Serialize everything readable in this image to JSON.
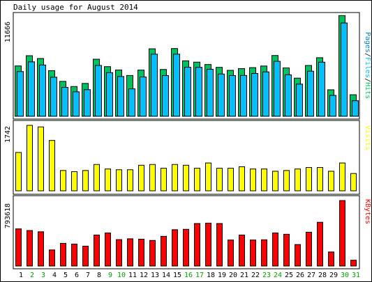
{
  "title": "Daily usage for August 2014",
  "days": [
    "1",
    "2",
    "3",
    "4",
    "5",
    "6",
    "7",
    "8",
    "9",
    "10",
    "11",
    "12",
    "13",
    "14",
    "15",
    "16",
    "17",
    "18",
    "19",
    "20",
    "21",
    "22",
    "23",
    "24",
    "25",
    "26",
    "27",
    "28",
    "29",
    "30",
    "31"
  ],
  "weekend_days": [
    2,
    3,
    9,
    10,
    16,
    17,
    23,
    24,
    30,
    31
  ],
  "panels": {
    "hits_panel": {
      "ymax_label": "11666",
      "legend": [
        "Pages",
        "Files",
        "Hits"
      ],
      "legend_colors": [
        "#0080c0",
        "#00c0ff",
        "#00c060"
      ]
    },
    "visits_panel": {
      "ymax_label": "1742",
      "legend": [
        "Visits"
      ],
      "legend_colors": [
        "#ffff00"
      ]
    },
    "kbytes_panel": {
      "ymax_label": "793618",
      "legend": [
        "KBytes"
      ],
      "legend_colors": [
        "#ff0000"
      ]
    }
  },
  "colors": {
    "hits": "#00c060",
    "files": "#00c0ff",
    "visits": "#ffff00",
    "kbytes": "#ff0000",
    "weekday_label": "#000000",
    "weekend_label": "#00a000",
    "frame_bg": "#ffffff",
    "panel_bg": "#ffffff"
  },
  "chart_data": [
    {
      "type": "bar",
      "ylabel": "Pages/Files/Hits",
      "ylim": [
        0,
        11666
      ],
      "categories": [
        "1",
        "2",
        "3",
        "4",
        "5",
        "6",
        "7",
        "8",
        "9",
        "10",
        "11",
        "12",
        "13",
        "14",
        "15",
        "16",
        "17",
        "18",
        "19",
        "20",
        "21",
        "22",
        "23",
        "24",
        "25",
        "26",
        "27",
        "28",
        "29",
        "30",
        "31"
      ],
      "series": [
        {
          "name": "Hits",
          "values": [
            5700,
            6860,
            6540,
            5170,
            3950,
            3370,
            3720,
            6460,
            5620,
            5240,
            4620,
            5230,
            7640,
            5300,
            7670,
            6280,
            6130,
            5860,
            5540,
            5200,
            5400,
            5510,
            5690,
            6880,
            5480,
            4320,
            5750,
            6630,
            3000,
            11400,
            2440
          ]
        },
        {
          "name": "Files",
          "values": [
            5300,
            6400,
            6040,
            4660,
            3510,
            3010,
            3250,
            5990,
            5180,
            4740,
            3340,
            4690,
            7270,
            4850,
            7270,
            5790,
            5780,
            5560,
            5020,
            4850,
            4860,
            5080,
            5260,
            6460,
            4930,
            3880,
            5340,
            6360,
            2600,
            10800,
            2000
          ]
        }
      ]
    },
    {
      "type": "bar",
      "ylabel": "Visits",
      "ylim": [
        0,
        1742
      ],
      "categories": [
        "1",
        "2",
        "3",
        "4",
        "5",
        "6",
        "7",
        "8",
        "9",
        "10",
        "11",
        "12",
        "13",
        "14",
        "15",
        "16",
        "17",
        "18",
        "19",
        "20",
        "21",
        "22",
        "23",
        "24",
        "25",
        "26",
        "27",
        "28",
        "29",
        "30",
        "31"
      ],
      "series": [
        {
          "name": "Visits",
          "values": [
            1020,
            1742,
            1700,
            1340,
            540,
            510,
            540,
            700,
            580,
            560,
            560,
            680,
            700,
            600,
            700,
            680,
            600,
            740,
            600,
            600,
            640,
            580,
            580,
            520,
            540,
            580,
            620,
            620,
            520,
            740,
            460
          ]
        }
      ]
    },
    {
      "type": "bar",
      "ylabel": "KBytes",
      "ylim": [
        0,
        793618
      ],
      "categories": [
        "1",
        "2",
        "3",
        "4",
        "5",
        "6",
        "7",
        "8",
        "9",
        "10",
        "11",
        "12",
        "13",
        "14",
        "15",
        "16",
        "17",
        "18",
        "19",
        "20",
        "21",
        "22",
        "23",
        "24",
        "25",
        "26",
        "27",
        "28",
        "29",
        "30",
        "31"
      ],
      "series": [
        {
          "name": "KBytes",
          "values": [
            450000,
            430000,
            415000,
            195000,
            275000,
            265000,
            240000,
            375000,
            400000,
            320000,
            330000,
            325000,
            310000,
            360000,
            440000,
            445000,
            515000,
            520000,
            515000,
            315000,
            375000,
            315000,
            318000,
            400000,
            385000,
            260000,
            410000,
            530000,
            170000,
            793618,
            70000
          ]
        }
      ]
    }
  ]
}
